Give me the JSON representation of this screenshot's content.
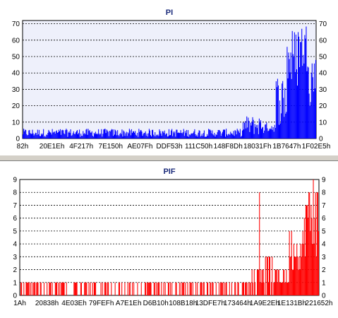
{
  "chart_data": [
    {
      "type": "bar",
      "title": "PI",
      "color": "#0000ff",
      "background": "#eef0fb",
      "ylim": [
        0,
        72
      ],
      "y_ticks": [
        0,
        10,
        20,
        30,
        40,
        50,
        60,
        70
      ],
      "x_tick_labels": [
        "82h",
        "20E1Eh",
        "4F217h",
        "7E150h",
        "AE07Fh",
        "DDF53h",
        "111C50h",
        "148F8Dh",
        "18031Fh",
        "1B7647h",
        "1F02E5h"
      ],
      "grid": true,
      "x_index_range": [
        0,
        400
      ],
      "segments": [
        {
          "from": 0,
          "to": 300,
          "low": 1,
          "high": 6
        },
        {
          "from": 300,
          "to": 330,
          "low": 2,
          "high": 14
        },
        {
          "from": 330,
          "to": 345,
          "low": 4,
          "high": 10
        },
        {
          "from": 345,
          "to": 360,
          "low": 8,
          "high": 40
        },
        {
          "from": 360,
          "to": 375,
          "low": 30,
          "high": 68
        },
        {
          "from": 375,
          "to": 390,
          "low": 40,
          "high": 72
        },
        {
          "from": 390,
          "to": 400,
          "low": 20,
          "high": 55
        }
      ]
    },
    {
      "type": "bar",
      "title": "PIF",
      "color": "#ff0000",
      "background": "#ffffff",
      "ylim": [
        0,
        9
      ],
      "y_ticks": [
        0,
        1,
        2,
        3,
        4,
        5,
        6,
        7,
        8,
        9
      ],
      "x_tick_labels": [
        "1Ah",
        "20838h",
        "4E03Eh",
        "79FEFh",
        "A7E1Eh",
        "D6B10h",
        "108B18h",
        "13DFE7h",
        "173464h",
        "1A9E2Eh",
        "1E131Bh",
        "221652h"
      ],
      "grid": true,
      "x_index_range": [
        0,
        400
      ],
      "segments": [
        {
          "from": 0,
          "to": 310,
          "low": 0,
          "high": 1,
          "density": 0.45
        },
        {
          "from": 310,
          "to": 340,
          "low": 1,
          "high": 3,
          "density": 0.8
        },
        {
          "from": 340,
          "to": 360,
          "low": 1,
          "high": 2,
          "density": 1.0
        },
        {
          "from": 360,
          "to": 380,
          "low": 2,
          "high": 5,
          "density": 1.0
        },
        {
          "from": 380,
          "to": 400,
          "low": 3,
          "high": 9,
          "density": 1.0
        }
      ],
      "spikes": [
        {
          "at": 320,
          "value": 8
        },
        {
          "at": 392,
          "value": 9
        },
        {
          "at": 395,
          "value": 8
        }
      ]
    }
  ]
}
